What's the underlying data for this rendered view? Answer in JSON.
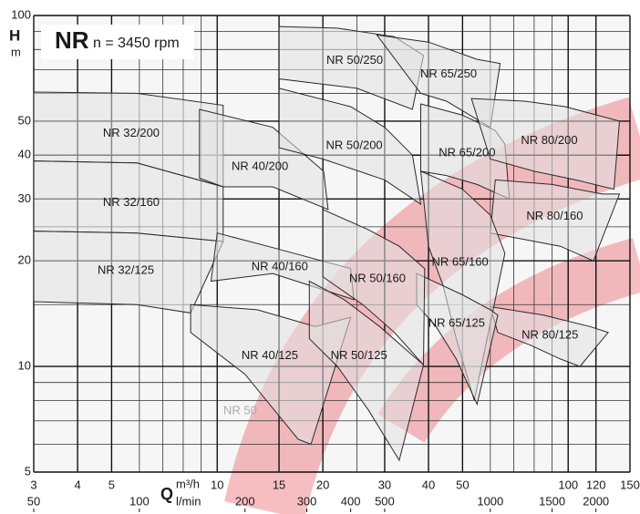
{
  "chart_data": {
    "type": "pump-map",
    "title": "NR",
    "subtitle": "n = 3450 rpm",
    "y_label": "H",
    "y_unit": "m",
    "x_label": "Q",
    "x_unit": "m³/h",
    "x2_unit": "l/min",
    "log_x": true,
    "log_y": true,
    "grid": true,
    "xlim": [
      3,
      150
    ],
    "xticks": [
      3,
      4,
      5,
      10,
      15,
      20,
      30,
      40,
      50,
      100,
      120,
      150
    ],
    "x_minor_ticks": [
      6,
      7,
      8,
      9,
      25,
      60,
      70,
      80,
      90
    ],
    "x2lim": [
      50,
      2500
    ],
    "x2ticks": [
      50,
      100,
      200,
      300,
      400,
      500,
      1000,
      1500,
      2000
    ],
    "ylim": [
      5,
      100
    ],
    "yticks": [
      5,
      10,
      20,
      30,
      40,
      50,
      100
    ],
    "y_minor_ticks": [
      6,
      7,
      8,
      9,
      15,
      25,
      60,
      70,
      80,
      90
    ],
    "region_fill": "#e2e2e2",
    "region_stroke": "#2a2a2a",
    "watermark": "NR 50",
    "regions": [
      {
        "name": "NR 32/200",
        "x": [
          3,
          5.9,
          10.4,
          10.4,
          5.9,
          3
        ],
        "y": [
          60.5,
          60,
          55.5,
          32.5,
          38,
          38.5
        ]
      },
      {
        "name": "NR 32/160",
        "x": [
          3,
          5.9,
          10.4,
          10.4,
          5.9,
          3
        ],
        "y": [
          38.5,
          38,
          32.5,
          22.7,
          24,
          24.3
        ]
      },
      {
        "name": "NR 32/125",
        "x": [
          3,
          5.9,
          10.4,
          8.4,
          5.9,
          3
        ],
        "y": [
          24.3,
          24,
          22.7,
          14.2,
          15,
          15.3
        ]
      },
      {
        "name": "NR 40/200",
        "x": [
          8.9,
          14.4,
          20.1,
          20.7,
          14.4,
          10.4,
          8.9
        ],
        "y": [
          54,
          48,
          36,
          28,
          32.5,
          32.5,
          34.4
        ]
      },
      {
        "name": "NR 40/160",
        "x": [
          10,
          14.4,
          24,
          24.5,
          14.4,
          9.6
        ],
        "y": [
          24,
          21.8,
          19,
          15.5,
          18.4,
          17.5
        ]
      },
      {
        "name": "NR 40/125",
        "x": [
          8.4,
          13,
          19,
          24,
          18.5,
          17,
          12,
          8.4
        ],
        "y": [
          15,
          14.5,
          13,
          13.8,
          6,
          6.2,
          9.5,
          12.5
        ]
      },
      {
        "name": "NR 50/250",
        "x": [
          15,
          22,
          32,
          38.7,
          36,
          25,
          15
        ],
        "y": [
          93,
          92,
          87,
          77,
          54,
          62,
          66
        ]
      },
      {
        "name": "NR 65/250",
        "x": [
          28.5,
          40,
          55,
          64,
          60,
          45,
          38
        ],
        "y": [
          88,
          84,
          75,
          73,
          48,
          57,
          60
        ]
      },
      {
        "name": "NR 50/200",
        "x": [
          15,
          24,
          30,
          36,
          38,
          30,
          20,
          15
        ],
        "y": [
          62,
          55,
          48,
          40,
          29,
          34,
          39,
          42
        ]
      },
      {
        "name": "NR 65/200",
        "x": [
          38,
          50,
          62,
          66,
          68,
          55,
          45,
          38
        ],
        "y": [
          56,
          52,
          47,
          43,
          30,
          33,
          35,
          36
        ]
      },
      {
        "name": "NR 80/200",
        "x": [
          53,
          75,
          98,
          140,
          135,
          105,
          80,
          60
        ],
        "y": [
          58,
          57,
          55,
          50,
          32,
          34,
          36,
          39
        ]
      },
      {
        "name": "NR 80/160",
        "x": [
          62,
          90,
          125,
          140,
          118,
          95,
          75,
          60
        ],
        "y": [
          34,
          33,
          31,
          31,
          20,
          22,
          23,
          24
        ]
      },
      {
        "name": "NR 80/125",
        "x": [
          60,
          85,
          115,
          130,
          108,
          95,
          78,
          63
        ],
        "y": [
          14.8,
          14,
          13,
          12.5,
          10,
          10.5,
          11.5,
          12.5
        ]
      },
      {
        "name": "NR 65/160",
        "x": [
          38,
          50,
          60,
          66,
          54,
          48,
          44,
          40
        ],
        "y": [
          36,
          32,
          27,
          21,
          8,
          12,
          17,
          22
        ]
      },
      {
        "name": "NR 65/125",
        "x": [
          37,
          50,
          60,
          63,
          55,
          48,
          42,
          37
        ],
        "y": [
          18.4,
          16,
          14.5,
          14,
          7.8,
          10.5,
          13,
          15
        ]
      },
      {
        "name": "NR 50/160",
        "x": [
          20,
          27,
          33,
          39,
          38.7,
          32,
          26,
          20
        ],
        "y": [
          28,
          24.5,
          22,
          19,
          10.1,
          12.5,
          15,
          18
        ]
      },
      {
        "name": "NR 50/125",
        "x": [
          18.3,
          23,
          29,
          38.7,
          33,
          27,
          22,
          18.3
        ],
        "y": [
          17.5,
          15.5,
          13,
          10.1,
          5.4,
          7.5,
          10,
          12
        ]
      }
    ]
  }
}
